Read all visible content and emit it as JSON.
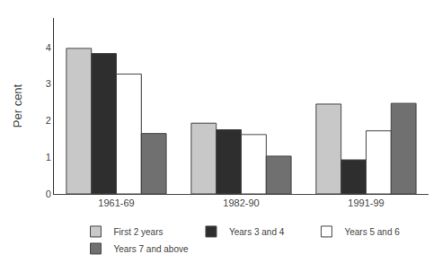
{
  "chart_data": {
    "type": "bar",
    "ylabel": "Per cent",
    "categories": [
      "1961-69",
      "1982-90",
      "1991-99"
    ],
    "series": [
      {
        "name": "First 2 years",
        "color": "#c8c8c8",
        "values": [
          3.97,
          1.93,
          2.45
        ]
      },
      {
        "name": "Years 3 and 4",
        "color": "#2e2e2e",
        "values": [
          3.83,
          1.75,
          0.93
        ]
      },
      {
        "name": "Years 5 and 6",
        "color": "#ffffff",
        "values": [
          3.27,
          1.62,
          1.72
        ]
      },
      {
        "name": "Years 7 and above",
        "color": "#707070",
        "values": [
          1.65,
          1.03,
          2.47
        ]
      }
    ],
    "ylim": [
      0,
      4.8
    ],
    "yticks": [
      0,
      1,
      2,
      3,
      4
    ],
    "grid": false,
    "legend": "bottom"
  }
}
